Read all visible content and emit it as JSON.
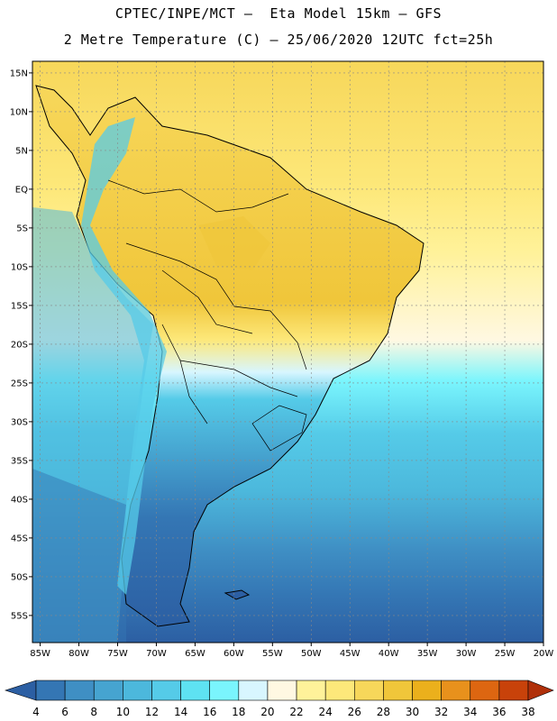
{
  "header": {
    "line1": "CPTEC/INPE/MCT –  Eta Model 15km – GFS",
    "line2": "2 Metre Temperature (C) – 25/06/2020 12UTC fct=25h"
  },
  "chart_data": {
    "type": "heatmap",
    "title": "2 Metre Temperature (C) – 25/06/2020 12UTC fct=25h",
    "lon_range": [
      -86,
      -20
    ],
    "lat_range": [
      -58.5,
      16.5
    ],
    "lat_ticks": [
      {
        "value": 15,
        "label": "15N"
      },
      {
        "value": 10,
        "label": "10N"
      },
      {
        "value": 5,
        "label": "5N"
      },
      {
        "value": 0,
        "label": "EQ"
      },
      {
        "value": -5,
        "label": "5S"
      },
      {
        "value": -10,
        "label": "10S"
      },
      {
        "value": -15,
        "label": "15S"
      },
      {
        "value": -20,
        "label": "20S"
      },
      {
        "value": -25,
        "label": "25S"
      },
      {
        "value": -30,
        "label": "30S"
      },
      {
        "value": -35,
        "label": "35S"
      },
      {
        "value": -40,
        "label": "40S"
      },
      {
        "value": -45,
        "label": "45S"
      },
      {
        "value": -50,
        "label": "50S"
      },
      {
        "value": -55,
        "label": "55S"
      }
    ],
    "lon_ticks": [
      {
        "value": -85,
        "label": "85W"
      },
      {
        "value": -80,
        "label": "80W"
      },
      {
        "value": -75,
        "label": "75W"
      },
      {
        "value": -70,
        "label": "70W"
      },
      {
        "value": -65,
        "label": "65W"
      },
      {
        "value": -60,
        "label": "60W"
      },
      {
        "value": -55,
        "label": "55W"
      },
      {
        "value": -50,
        "label": "50W"
      },
      {
        "value": -45,
        "label": "45W"
      },
      {
        "value": -40,
        "label": "40W"
      },
      {
        "value": -35,
        "label": "35W"
      },
      {
        "value": -30,
        "label": "30W"
      },
      {
        "value": -25,
        "label": "25W"
      },
      {
        "value": -20,
        "label": "20W"
      }
    ],
    "grid": true,
    "colorbar": {
      "levels": [
        "4",
        "6",
        "8",
        "10",
        "12",
        "14",
        "16",
        "18",
        "20",
        "22",
        "24",
        "26",
        "28",
        "30",
        "32",
        "34",
        "36",
        "38"
      ],
      "colors": [
        "#2c5fa3",
        "#3476b4",
        "#3f8fc4",
        "#46a4d0",
        "#4cb8dc",
        "#55cbe8",
        "#5ee2f2",
        "#7af5fd",
        "#d8f6ff",
        "#fff8e2",
        "#fff29a",
        "#fde87a",
        "#f7d75a",
        "#f0c63a",
        "#ebb01c",
        "#e8911c",
        "#dd6611",
        "#c8420a",
        "#b0300a"
      ]
    }
  }
}
